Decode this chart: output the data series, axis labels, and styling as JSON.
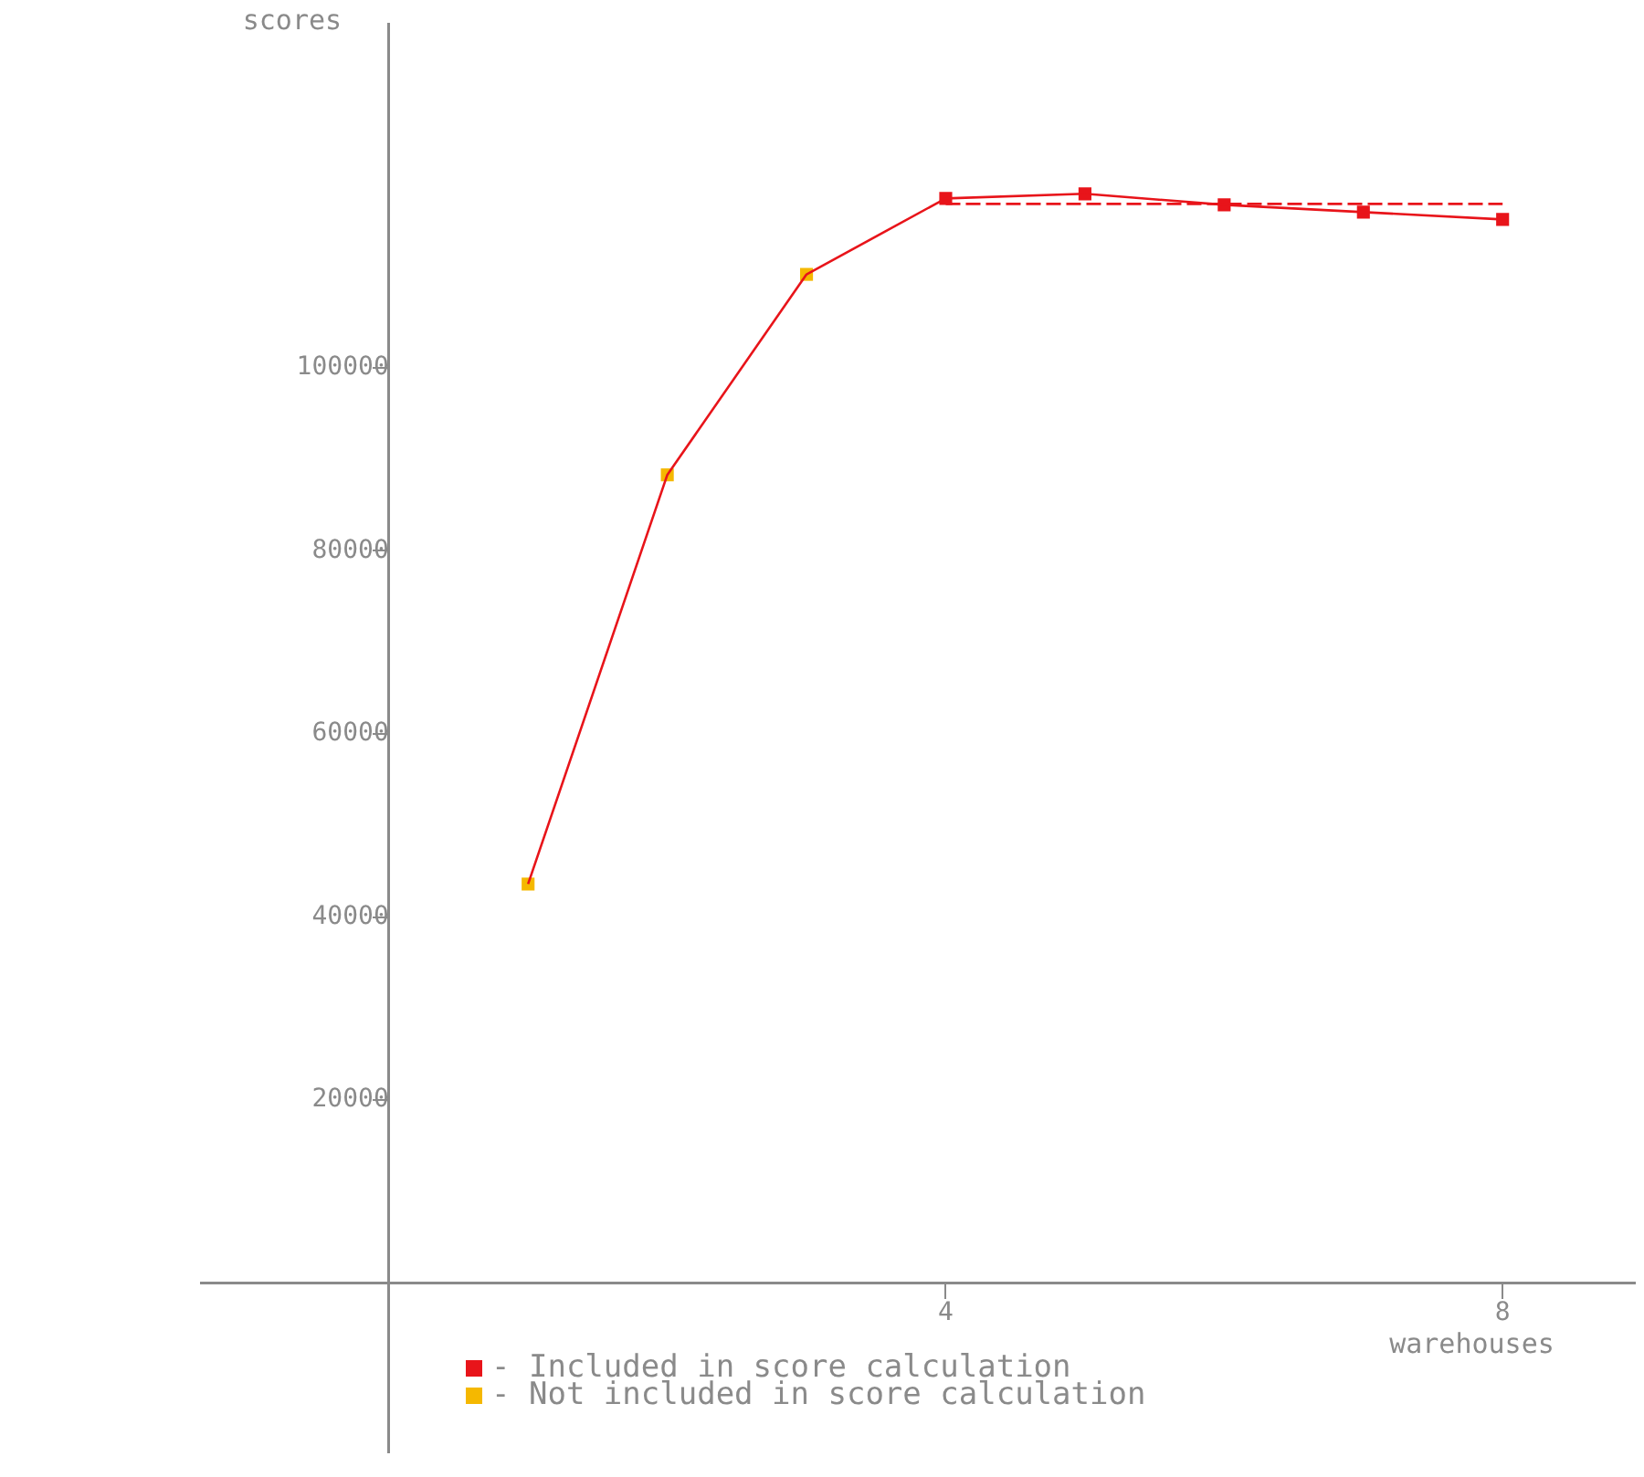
{
  "chart_data": {
    "type": "line",
    "xlabel": "warehouses",
    "ylabel": "scores",
    "xlim": [
      -1.35,
      8.95
    ],
    "ylim": [
      -18500,
      137500
    ],
    "xticks": [
      4,
      8
    ],
    "yticks": [
      20000,
      40000,
      60000,
      80000,
      100000
    ],
    "grid": false,
    "legend": "bottom left",
    "series": [
      {
        "type": "line",
        "color": "#e8141a",
        "marker": "none",
        "x": [
          1,
          2,
          3,
          4,
          5,
          6,
          7,
          8
        ],
        "values": [
          43600,
          88300,
          110200,
          118500,
          119000,
          117800,
          117000,
          116200
        ]
      },
      {
        "type": "scatter",
        "name": "- Included in score calculation",
        "color": "#e8141a",
        "marker": "square",
        "x": [
          4,
          5,
          6,
          7,
          8
        ],
        "values": [
          118500,
          119000,
          117800,
          117000,
          116200
        ]
      },
      {
        "type": "scatter",
        "name": "- Not included in score calculation",
        "color": "#f5b800",
        "marker": "square",
        "x": [
          1,
          2,
          3
        ],
        "values": [
          43600,
          88300,
          110200
        ]
      },
      {
        "type": "line",
        "color": "#e8141a",
        "marker": "none",
        "line_style": "dashed",
        "x": [
          4,
          8
        ],
        "values": [
          117900,
          117900
        ]
      }
    ]
  }
}
